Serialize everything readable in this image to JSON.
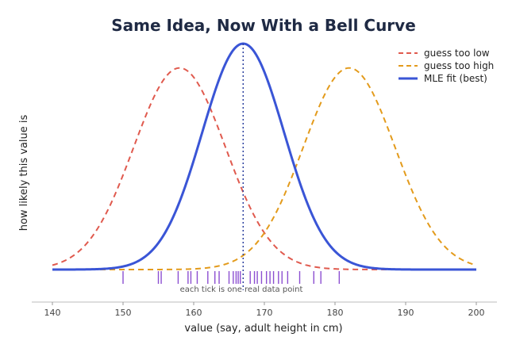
{
  "chart_data": {
    "type": "line",
    "title": "Same Idea, Now With a Bell Curve",
    "xlabel": "value (say, adult height in cm)",
    "ylabel": "how likely this value is",
    "xlim": [
      140,
      200
    ],
    "ylim": [
      -0.009,
      0.072
    ],
    "x_ticks": [
      140,
      150,
      160,
      170,
      180,
      190,
      200
    ],
    "y_ticks_shown": false,
    "grid": false,
    "legend_position": "top-right",
    "series": [
      {
        "name": "guess too low",
        "kind": "normal-pdf",
        "mean": 158,
        "sd": 6.5,
        "style": "dashed",
        "color": "#e05a4e"
      },
      {
        "name": "guess too high",
        "kind": "normal-pdf",
        "mean": 182,
        "sd": 6.5,
        "style": "dashed",
        "color": "#e39b1c"
      },
      {
        "name": "MLE fit (best)",
        "kind": "normal-pdf",
        "mean": 167,
        "sd": 5.8,
        "style": "solid",
        "color": "#3a55d6"
      }
    ],
    "mle_mean_line": {
      "x": 167,
      "style": "dotted",
      "color": "#2b3f9e"
    },
    "data_points": [
      150,
      155,
      155.4,
      157.8,
      159.2,
      159.6,
      160.5,
      162,
      163,
      163.6,
      165,
      165.6,
      166,
      166.3,
      166.6,
      168,
      168.6,
      169,
      169.6,
      170.3,
      170.8,
      171.3,
      172,
      172.5,
      173.3,
      175,
      177,
      178,
      180.6
    ],
    "data_points_color": "#8c4fd1",
    "annotation": "each tick is one real data point"
  }
}
